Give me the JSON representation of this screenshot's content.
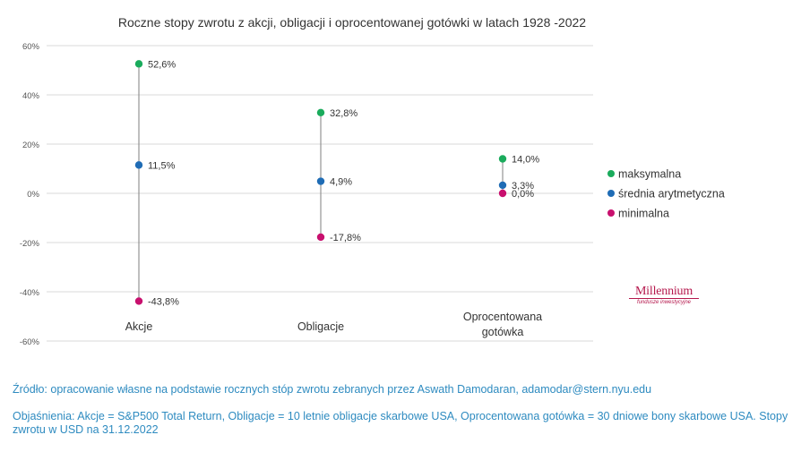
{
  "chart_data": {
    "type": "scatter",
    "title": "Roczne stopy zwrotu z akcji, obligacji i oprocentowanej gotówki w latach 1928 -2022",
    "categories": [
      "Akcje",
      "Obligacje",
      "Oprocentowana gotówka"
    ],
    "y_ticks": [
      "60%",
      "40%",
      "20%",
      "0%",
      "-20%",
      "-40%",
      "-60%"
    ],
    "ylim": [
      -60,
      60
    ],
    "grid": true,
    "legend_position": "right",
    "series": [
      {
        "name": "maksymalna",
        "color": "#1aab5c",
        "values": [
          52.6,
          32.8,
          14.0
        ],
        "labels": [
          "52,6%",
          "32,8%",
          "14,0%"
        ]
      },
      {
        "name": "średnia arytmetyczna",
        "color": "#1f6cb5",
        "values": [
          11.5,
          4.9,
          3.3
        ],
        "labels": [
          "11,5%",
          "4,9%",
          "3,3%"
        ]
      },
      {
        "name": "minimalna",
        "color": "#c8106e",
        "values": [
          -43.8,
          -17.8,
          0.0
        ],
        "labels": [
          "-43,8%",
          "-17,8%",
          "0,0%"
        ]
      }
    ]
  },
  "logo": {
    "main": "Millennium",
    "sub": "fundusze inwestycyjne"
  },
  "notes": {
    "source": "Źródło: opracowanie własne na podstawie rocznych stóp zwrotu zebranych przez Aswath Damodaran, adamodar@stern.nyu.edu",
    "explanation": "Objaśnienia: Akcje = S&P500 Total Return, Obligacje = 10 letnie obligacje skarbowe USA, Oprocentowana gotówka = 30 dniowe bony skarbowe USA. Stopy zwrotu w USD na 31.12.2022"
  }
}
